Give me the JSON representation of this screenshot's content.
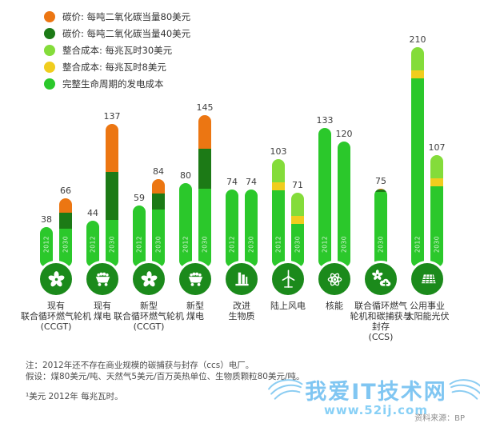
{
  "legend": {
    "items": [
      {
        "name": "carbon-price-80",
        "color": "#ec7612",
        "label": "碳价: 每吨二氧化碳当量80美元"
      },
      {
        "name": "carbon-price-40",
        "color": "#1c7a16",
        "label": "碳价: 每吨二氧化碳当量40美元"
      },
      {
        "name": "integration-cost-30",
        "color": "#84dc3a",
        "label": "整合成本: 每兆瓦时30美元"
      },
      {
        "name": "integration-cost-8",
        "color": "#f0cd1e",
        "label": "整合成本: 每兆瓦时8美元"
      },
      {
        "name": "lifecycle-cost",
        "color": "#2bc82b",
        "label": "完整生命周期的发电成本"
      }
    ]
  },
  "chart_data": {
    "type": "bar",
    "stacked": true,
    "ylim": [
      0,
      210
    ],
    "unit_footnote": "¹美元 2012年 每兆瓦时。",
    "icon_circle_color": "#1b8a1b",
    "segment_types": {
      "lifecycle": {
        "label": "完整生命周期的发电成本",
        "color": "#2bc82b"
      },
      "carbon40": {
        "label": "碳价: 每吨二氧化碳当量40美元",
        "color": "#1c7a16"
      },
      "carbon80": {
        "label": "碳价: 每吨二氧化碳当量80美元",
        "color": "#ec7612"
      },
      "integration8": {
        "label": "整合成本: 每兆瓦时8美元",
        "color": "#f0cd1e"
      },
      "integration30": {
        "label": "整合成本: 每兆瓦时30美元",
        "color": "#84dc3a"
      }
    },
    "groups": [
      {
        "icon": "gas-turbine",
        "label_lines": [
          "现有",
          "联合循环燃气轮机",
          "(CCGT)"
        ],
        "bars": [
          {
            "year": "2012",
            "total": 38,
            "segments": [
              {
                "type": "lifecycle",
                "value": 38
              }
            ]
          },
          {
            "year": "2030",
            "total": 66,
            "segments": [
              {
                "type": "lifecycle",
                "value": 37
              },
              {
                "type": "carbon40",
                "value": 15
              },
              {
                "type": "carbon80",
                "value": 14
              }
            ]
          }
        ]
      },
      {
        "icon": "coal",
        "label_lines": [
          "现有",
          "煤电"
        ],
        "bars": [
          {
            "year": "2012",
            "total": 44,
            "segments": [
              {
                "type": "lifecycle",
                "value": 44
              }
            ]
          },
          {
            "year": "2030",
            "total": 137,
            "segments": [
              {
                "type": "lifecycle",
                "value": 45
              },
              {
                "type": "carbon40",
                "value": 46
              },
              {
                "type": "carbon80",
                "value": 46
              }
            ]
          }
        ]
      },
      {
        "icon": "gas-turbine",
        "label_lines": [
          "新型",
          "联合循环燃气轮机",
          "(CCGT)"
        ],
        "bars": [
          {
            "year": "2012",
            "total": 59,
            "segments": [
              {
                "type": "lifecycle",
                "value": 59
              }
            ]
          },
          {
            "year": "2030",
            "total": 84,
            "segments": [
              {
                "type": "lifecycle",
                "value": 55
              },
              {
                "type": "carbon40",
                "value": 15
              },
              {
                "type": "carbon80",
                "value": 14
              }
            ]
          }
        ]
      },
      {
        "icon": "coal",
        "label_lines": [
          "新型",
          "煤电"
        ],
        "bars": [
          {
            "year": "2012",
            "total": 80,
            "segments": [
              {
                "type": "lifecycle",
                "value": 80
              }
            ]
          },
          {
            "year": "2030",
            "total": 145,
            "segments": [
              {
                "type": "lifecycle",
                "value": 75
              },
              {
                "type": "carbon40",
                "value": 38
              },
              {
                "type": "carbon80",
                "value": 32
              }
            ]
          }
        ]
      },
      {
        "icon": "biomass",
        "label_lines": [
          "改进",
          "生物质"
        ],
        "bars": [
          {
            "year": "2012",
            "total": 74,
            "segments": [
              {
                "type": "lifecycle",
                "value": 74
              }
            ]
          },
          {
            "year": "2030",
            "total": 74,
            "segments": [
              {
                "type": "lifecycle",
                "value": 74
              }
            ]
          }
        ]
      },
      {
        "icon": "wind",
        "label_lines": [
          "陆上风电"
        ],
        "bars": [
          {
            "year": "2012",
            "total": 103,
            "segments": [
              {
                "type": "lifecycle",
                "value": 73
              },
              {
                "type": "integration8",
                "value": 8
              },
              {
                "type": "integration30",
                "value": 22
              }
            ]
          },
          {
            "year": "2030",
            "total": 71,
            "segments": [
              {
                "type": "lifecycle",
                "value": 41
              },
              {
                "type": "integration8",
                "value": 8
              },
              {
                "type": "integration30",
                "value": 22
              }
            ]
          }
        ]
      },
      {
        "icon": "nuclear",
        "label_lines": [
          "核能"
        ],
        "bars": [
          {
            "year": "2012",
            "total": 133,
            "segments": [
              {
                "type": "lifecycle",
                "value": 133
              }
            ]
          },
          {
            "year": "2030",
            "total": 120,
            "segments": [
              {
                "type": "lifecycle",
                "value": 120
              }
            ]
          }
        ]
      },
      {
        "icon": "ccs",
        "label_lines": [
          "联合循环燃气",
          "轮机和碳捕获与",
          "封存",
          "(CCS)"
        ],
        "bars": [
          {
            "year": "2030",
            "total": 75,
            "segments": [
              {
                "type": "lifecycle",
                "value": 72
              },
              {
                "type": "carbon40",
                "value": 2
              },
              {
                "type": "carbon80",
                "value": 1
              }
            ]
          }
        ]
      },
      {
        "icon": "solar",
        "label_lines": [
          "公用事业",
          "太阳能光伏"
        ],
        "bars": [
          {
            "year": "2012",
            "total": 210,
            "segments": [
              {
                "type": "lifecycle",
                "value": 180
              },
              {
                "type": "integration8",
                "value": 8
              },
              {
                "type": "integration30",
                "value": 22
              }
            ]
          },
          {
            "year": "2030",
            "total": 107,
            "segments": [
              {
                "type": "lifecycle",
                "value": 77
              },
              {
                "type": "integration8",
                "value": 8
              },
              {
                "type": "integration30",
                "value": 22
              }
            ]
          }
        ]
      }
    ]
  },
  "notes": {
    "line1": "注：2012年还不存在商业规模的碳捕获与封存（ccs）电厂。",
    "line2": "假设：煤80美元/吨、天然气5美元/百万英热单位、生物质颗粒80美元/吨。",
    "footnote": "¹美元 2012年 每兆瓦时。"
  },
  "watermark": {
    "title": "我爱IT技术网",
    "url": "www.52ij.com",
    "source": "资料来源：BP"
  }
}
